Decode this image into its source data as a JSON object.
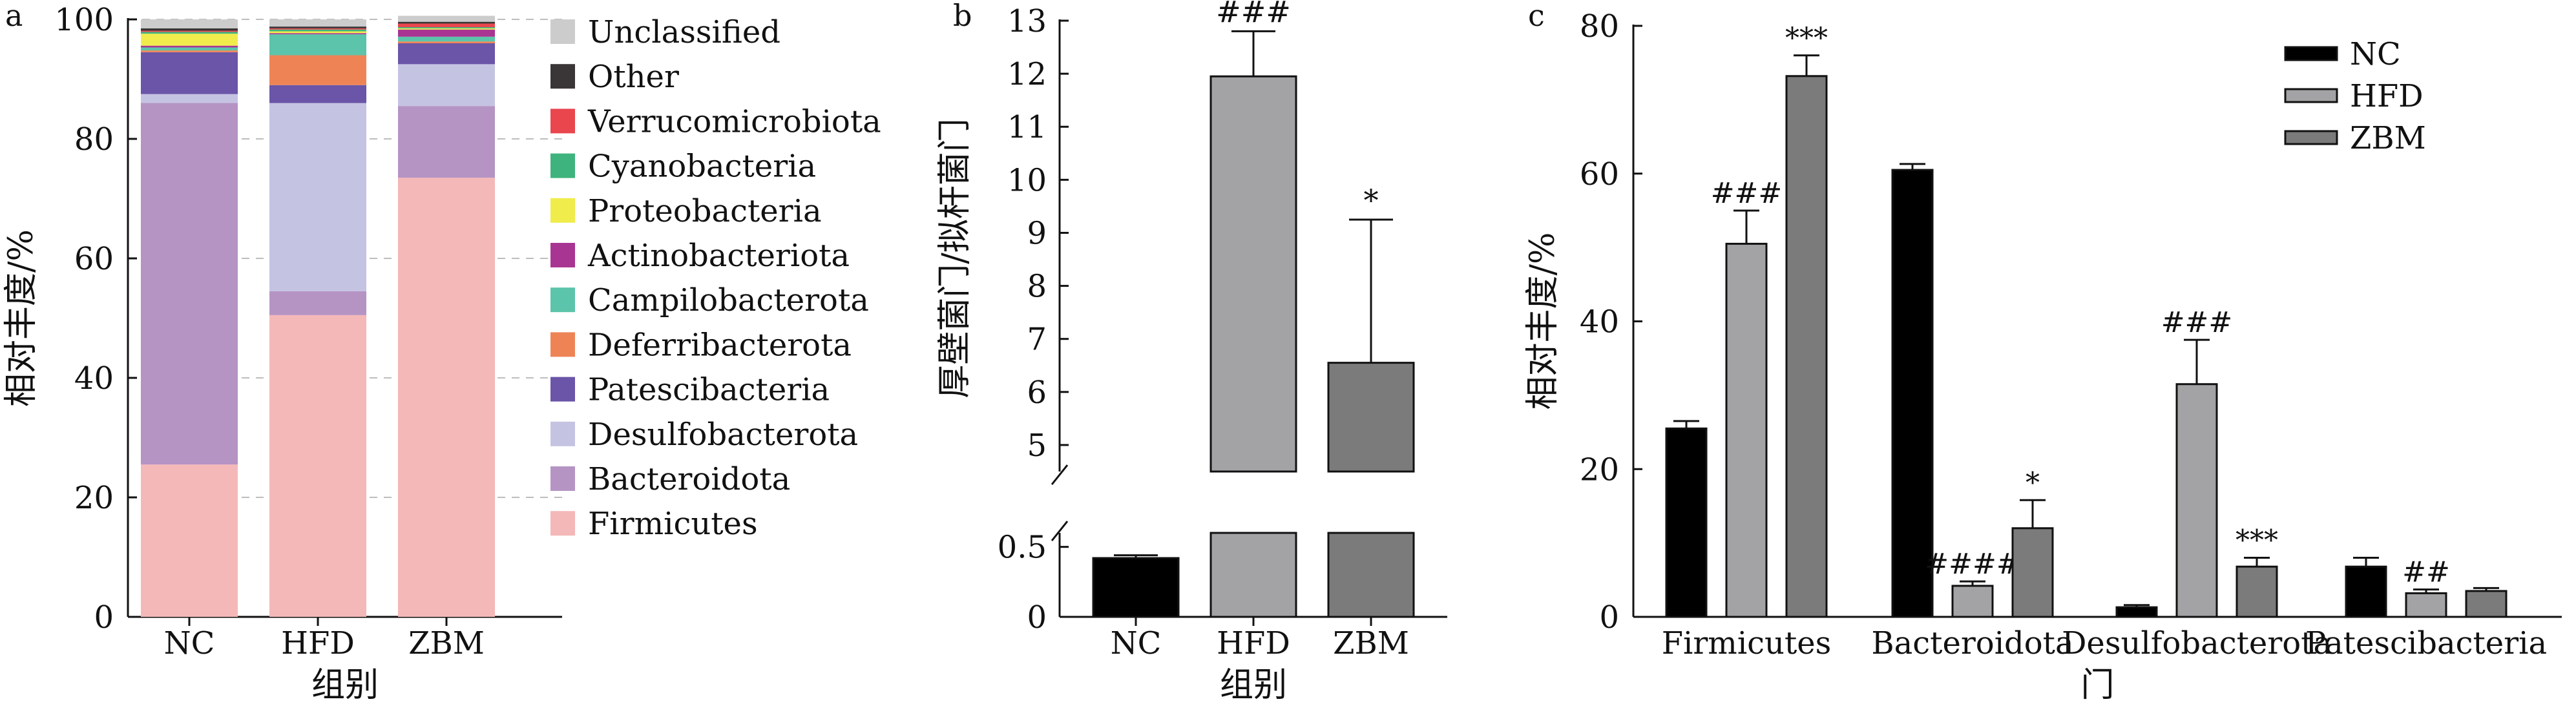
{
  "chart_data": [
    {
      "panel": "a",
      "type": "bar",
      "stacked": true,
      "categories": [
        "NC",
        "HFD",
        "ZBM"
      ],
      "xlabel": "组别",
      "ylabel": "相对丰度/%",
      "ylim": [
        0,
        100
      ],
      "yticks": [
        0,
        20,
        40,
        60,
        80,
        100
      ],
      "grid": "horizontal dashed",
      "legend_position": "right",
      "series": [
        {
          "name": "Firmicutes",
          "color": "#f4b8b8",
          "values": [
            25.5,
            50.5,
            73.5
          ]
        },
        {
          "name": "Bacteroidota",
          "color": "#b594c4",
          "values": [
            60.5,
            4.0,
            12.0
          ]
        },
        {
          "name": "Desulfobacterota",
          "color": "#c5c3e2",
          "values": [
            1.5,
            31.5,
            7.0
          ]
        },
        {
          "name": "Patescibacteria",
          "color": "#6a55a8",
          "values": [
            7.0,
            3.0,
            3.5
          ]
        },
        {
          "name": "Deferribacterota",
          "color": "#ee8456",
          "values": [
            0.3,
            5.0,
            0.3
          ]
        },
        {
          "name": "Campilobacterota",
          "color": "#5cc4aa",
          "values": [
            0.5,
            3.5,
            0.8
          ]
        },
        {
          "name": "Actinobacteriota",
          "color": "#a93592",
          "values": [
            0.3,
            0.2,
            1.2
          ]
        },
        {
          "name": "Proteobacteria",
          "color": "#f0ec4c",
          "values": [
            2.0,
            0.3,
            0.2
          ]
        },
        {
          "name": "Cyanobacteria",
          "color": "#3fb37d",
          "values": [
            0.3,
            0.3,
            0.2
          ]
        },
        {
          "name": "Verrucomicrobiota",
          "color": "#e9464e",
          "values": [
            0.2,
            0.2,
            0.6
          ]
        },
        {
          "name": "Other",
          "color": "#3a3536",
          "values": [
            0.4,
            0.3,
            0.3
          ]
        },
        {
          "name": "Unclassified",
          "color": "#cccccc",
          "values": [
            1.5,
            1.2,
            1.0
          ]
        }
      ]
    },
    {
      "panel": "b",
      "type": "bar",
      "categories": [
        "NC",
        "HFD",
        "ZBM"
      ],
      "xlabel": "组别",
      "ylabel": "厚壁菌门/拟杆菌门",
      "broken_axis": true,
      "ylim_lower": [
        0,
        0.6
      ],
      "yticks_lower": [
        0,
        0.5
      ],
      "ylim_upper": [
        4.5,
        13
      ],
      "yticks_upper": [
        5,
        6,
        7,
        8,
        9,
        10,
        11,
        12,
        13
      ],
      "series": [
        {
          "values": [
            0.42,
            11.95,
            6.55
          ],
          "errors": [
            0.02,
            0.85,
            2.7
          ],
          "colors": [
            "#000000",
            "#a3a3a6",
            "#7b7b7b"
          ]
        }
      ],
      "annotations": [
        "",
        "###",
        "*"
      ]
    },
    {
      "panel": "c",
      "type": "bar",
      "categories": [
        "Firmicutes",
        "Bacteroidota",
        "Desulfobacterota",
        "Patescibacteria"
      ],
      "xlabel": "门",
      "ylabel": "相对丰度/%",
      "ylim": [
        0,
        80
      ],
      "yticks": [
        0,
        20,
        40,
        60,
        80
      ],
      "legend_position": "top-right",
      "series": [
        {
          "name": "NC",
          "color": "#000000",
          "values": [
            25.5,
            60.5,
            1.3,
            6.8
          ],
          "errors": [
            1.0,
            0.8,
            0.3,
            1.2
          ],
          "annotations": [
            "",
            "",
            "",
            ""
          ]
        },
        {
          "name": "HFD",
          "color": "#a3a3a6",
          "values": [
            50.5,
            4.2,
            31.5,
            3.2
          ],
          "errors": [
            4.5,
            0.6,
            6.0,
            0.5
          ],
          "annotations": [
            "###",
            "####",
            "###",
            "##"
          ]
        },
        {
          "name": "ZBM",
          "color": "#7b7b7b",
          "values": [
            73.2,
            12.0,
            6.8,
            3.5
          ],
          "errors": [
            2.8,
            3.8,
            1.2,
            0.4
          ],
          "annotations": [
            "***",
            "*",
            "***",
            ""
          ]
        }
      ]
    }
  ]
}
